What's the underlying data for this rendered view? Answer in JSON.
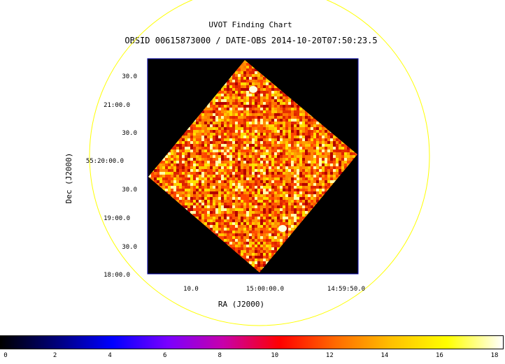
{
  "header": {
    "title": "UVOT Finding Chart",
    "subtitle": "OBSID 00615873000 / DATE-OBS 2014-10-20T07:50:23.5"
  },
  "axes": {
    "x_label": "RA (J2000)",
    "y_label": "Dec (J2000)",
    "x_ticks": [
      "10.0",
      "15:00:00.0",
      "14:59:50.0"
    ],
    "y_ticks": [
      "30.0",
      "21:00.0",
      "30.0",
      "55:20:00.0",
      "30.0",
      "19:00.0",
      "30.0",
      "18:00.0"
    ]
  },
  "colorbar": {
    "ticks": [
      "0",
      "2",
      "4",
      "6",
      "8",
      "10",
      "12",
      "14",
      "16",
      "18"
    ],
    "colors": [
      "#000000",
      "#00007a",
      "#0000ff",
      "#7a00ff",
      "#c800aa",
      "#ff0000",
      "#ff6a00",
      "#ffc000",
      "#ffff00",
      "#ffffff"
    ]
  },
  "colors": {
    "circle": "#ffff00",
    "frame": "#0000aa",
    "image_bg": "#000000"
  }
}
